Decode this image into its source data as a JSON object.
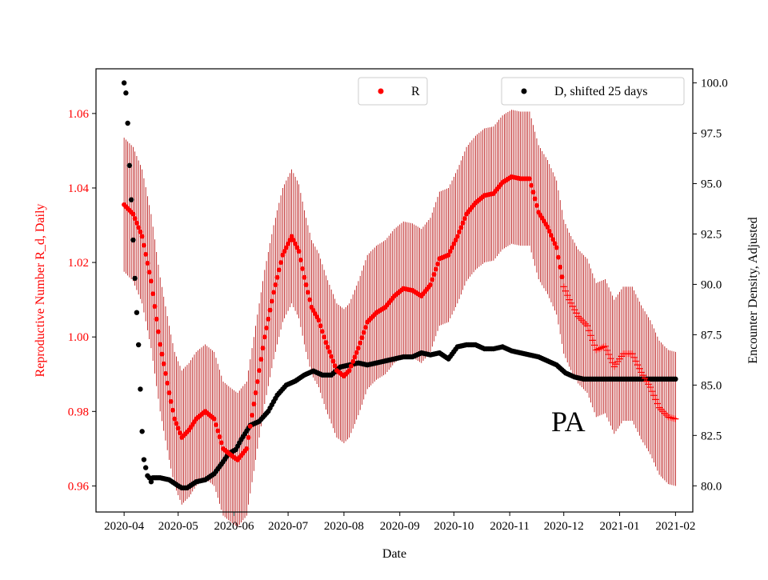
{
  "chart_data": {
    "type": "scatter",
    "x_axis": {
      "label": "Date",
      "ticks": [
        "2020-04",
        "2020-05",
        "2020-06",
        "2020-07",
        "2020-08",
        "2020-09",
        "2020-10",
        "2020-11",
        "2020-12",
        "2021-01",
        "2021-02"
      ],
      "tick_days": [
        0,
        30,
        61,
        91,
        122,
        153,
        183,
        214,
        244,
        275,
        306
      ],
      "range_days": [
        -15.6,
        315.6
      ]
    },
    "y_left": {
      "label": "Reproductive Number R_d, Daily",
      "range": [
        0.953,
        1.072
      ],
      "ticks": [
        0.96,
        0.98,
        1.0,
        1.02,
        1.04,
        1.06
      ],
      "tick_labels": [
        "0.96",
        "0.98",
        "1.00",
        "1.02",
        "1.04",
        "1.06"
      ],
      "color": "#ff0000"
    },
    "y_right": {
      "label": "Encounter Density, Adjusted",
      "range": [
        78.7,
        100.7
      ],
      "ticks": [
        80.0,
        82.5,
        85.0,
        87.5,
        90.0,
        92.5,
        95.0,
        97.5,
        100.0
      ],
      "tick_labels": [
        "80.0",
        "82.5",
        "85.0",
        "87.5",
        "90.0",
        "92.5",
        "95.0",
        "97.5",
        "100.0"
      ],
      "color": "#000000"
    },
    "series": [
      {
        "name": "R",
        "axis": "left",
        "color": "#ff0000",
        "errorbar_color": "#b30000",
        "marker_switch_day": 244,
        "keyframes_day": [
          0,
          5,
          10,
          15,
          20,
          25,
          28,
          32,
          36,
          40,
          45,
          50,
          55,
          60,
          63,
          68,
          73,
          78,
          83,
          88,
          93,
          97,
          100,
          104,
          108,
          112,
          118,
          122,
          125,
          130,
          135,
          140,
          145,
          150,
          155,
          160,
          165,
          170,
          175,
          180,
          185,
          190,
          195,
          200,
          205,
          210,
          215,
          220,
          225,
          230,
          235,
          240,
          244,
          247,
          252,
          257,
          262,
          267,
          272,
          277,
          282,
          287,
          292,
          297,
          302,
          306
        ],
        "keyframes_value": [
          1.0355,
          1.033,
          1.027,
          1.015,
          0.998,
          0.985,
          0.978,
          0.973,
          0.975,
          0.978,
          0.98,
          0.978,
          0.97,
          0.968,
          0.967,
          0.97,
          0.985,
          1.0,
          1.012,
          1.022,
          1.027,
          1.023,
          1.016,
          1.008,
          1.0045,
          0.9985,
          0.991,
          0.9895,
          0.991,
          0.997,
          1.004,
          1.0065,
          1.008,
          1.011,
          1.013,
          1.0125,
          1.011,
          1.014,
          1.021,
          1.022,
          1.027,
          1.033,
          1.036,
          1.038,
          1.0385,
          1.0415,
          1.043,
          1.0425,
          1.0425,
          1.0335,
          1.0295,
          1.024,
          1.0135,
          1.01,
          1.0055,
          1.003,
          0.9965,
          0.9975,
          0.992,
          0.9955,
          0.9955,
          0.9905,
          0.9865,
          0.981,
          0.9785,
          0.978
        ],
        "errorbar_halfwidth": 0.018
      },
      {
        "name": "D, shifted 25 days",
        "axis": "right",
        "color": "#000000",
        "keyframes_day": [
          0,
          1,
          2,
          3,
          4,
          5,
          6,
          7,
          8,
          9,
          10,
          11,
          12,
          13,
          14,
          15,
          16,
          18,
          20,
          25,
          30,
          32,
          35,
          40,
          45,
          50,
          55,
          58,
          62,
          65,
          70,
          75,
          80,
          85,
          90,
          95,
          100,
          105,
          110,
          115,
          120,
          125,
          130,
          135,
          140,
          145,
          150,
          155,
          160,
          165,
          170,
          175,
          180,
          185,
          190,
          195,
          200,
          205,
          210,
          215,
          220,
          225,
          230,
          235,
          240,
          245,
          250,
          255,
          260,
          265,
          270,
          275,
          280,
          285,
          290,
          295,
          300,
          306
        ],
        "keyframes_value": [
          100.0,
          99.5,
          98.0,
          95.9,
          94.2,
          92.2,
          90.3,
          88.6,
          87.0,
          84.8,
          82.7,
          81.3,
          80.9,
          80.5,
          80.4,
          80.2,
          80.4,
          80.4,
          80.4,
          80.3,
          80.0,
          79.9,
          79.9,
          80.2,
          80.3,
          80.6,
          81.2,
          81.6,
          81.8,
          82.3,
          83.0,
          83.2,
          83.7,
          84.5,
          85.0,
          85.2,
          85.5,
          85.7,
          85.5,
          85.5,
          85.9,
          86.0,
          86.1,
          86.0,
          86.1,
          86.2,
          86.3,
          86.4,
          86.4,
          86.6,
          86.5,
          86.6,
          86.3,
          86.9,
          87.0,
          87.0,
          86.8,
          86.8,
          86.9,
          86.7,
          86.6,
          86.5,
          86.4,
          86.2,
          86.0,
          85.6,
          85.4,
          85.3,
          85.3,
          85.3,
          85.3,
          85.3,
          85.3,
          85.3,
          85.3,
          85.3,
          85.3,
          85.3
        ]
      }
    ],
    "legend": [
      {
        "label": "R",
        "color": "#ff0000",
        "placement": "upper-center"
      },
      {
        "label": "D, shifted 25 days",
        "color": "#000000",
        "placement": "upper-right"
      }
    ],
    "annotation": {
      "text": "PA",
      "day": 237,
      "value": 0.9775,
      "axis": "left"
    }
  }
}
